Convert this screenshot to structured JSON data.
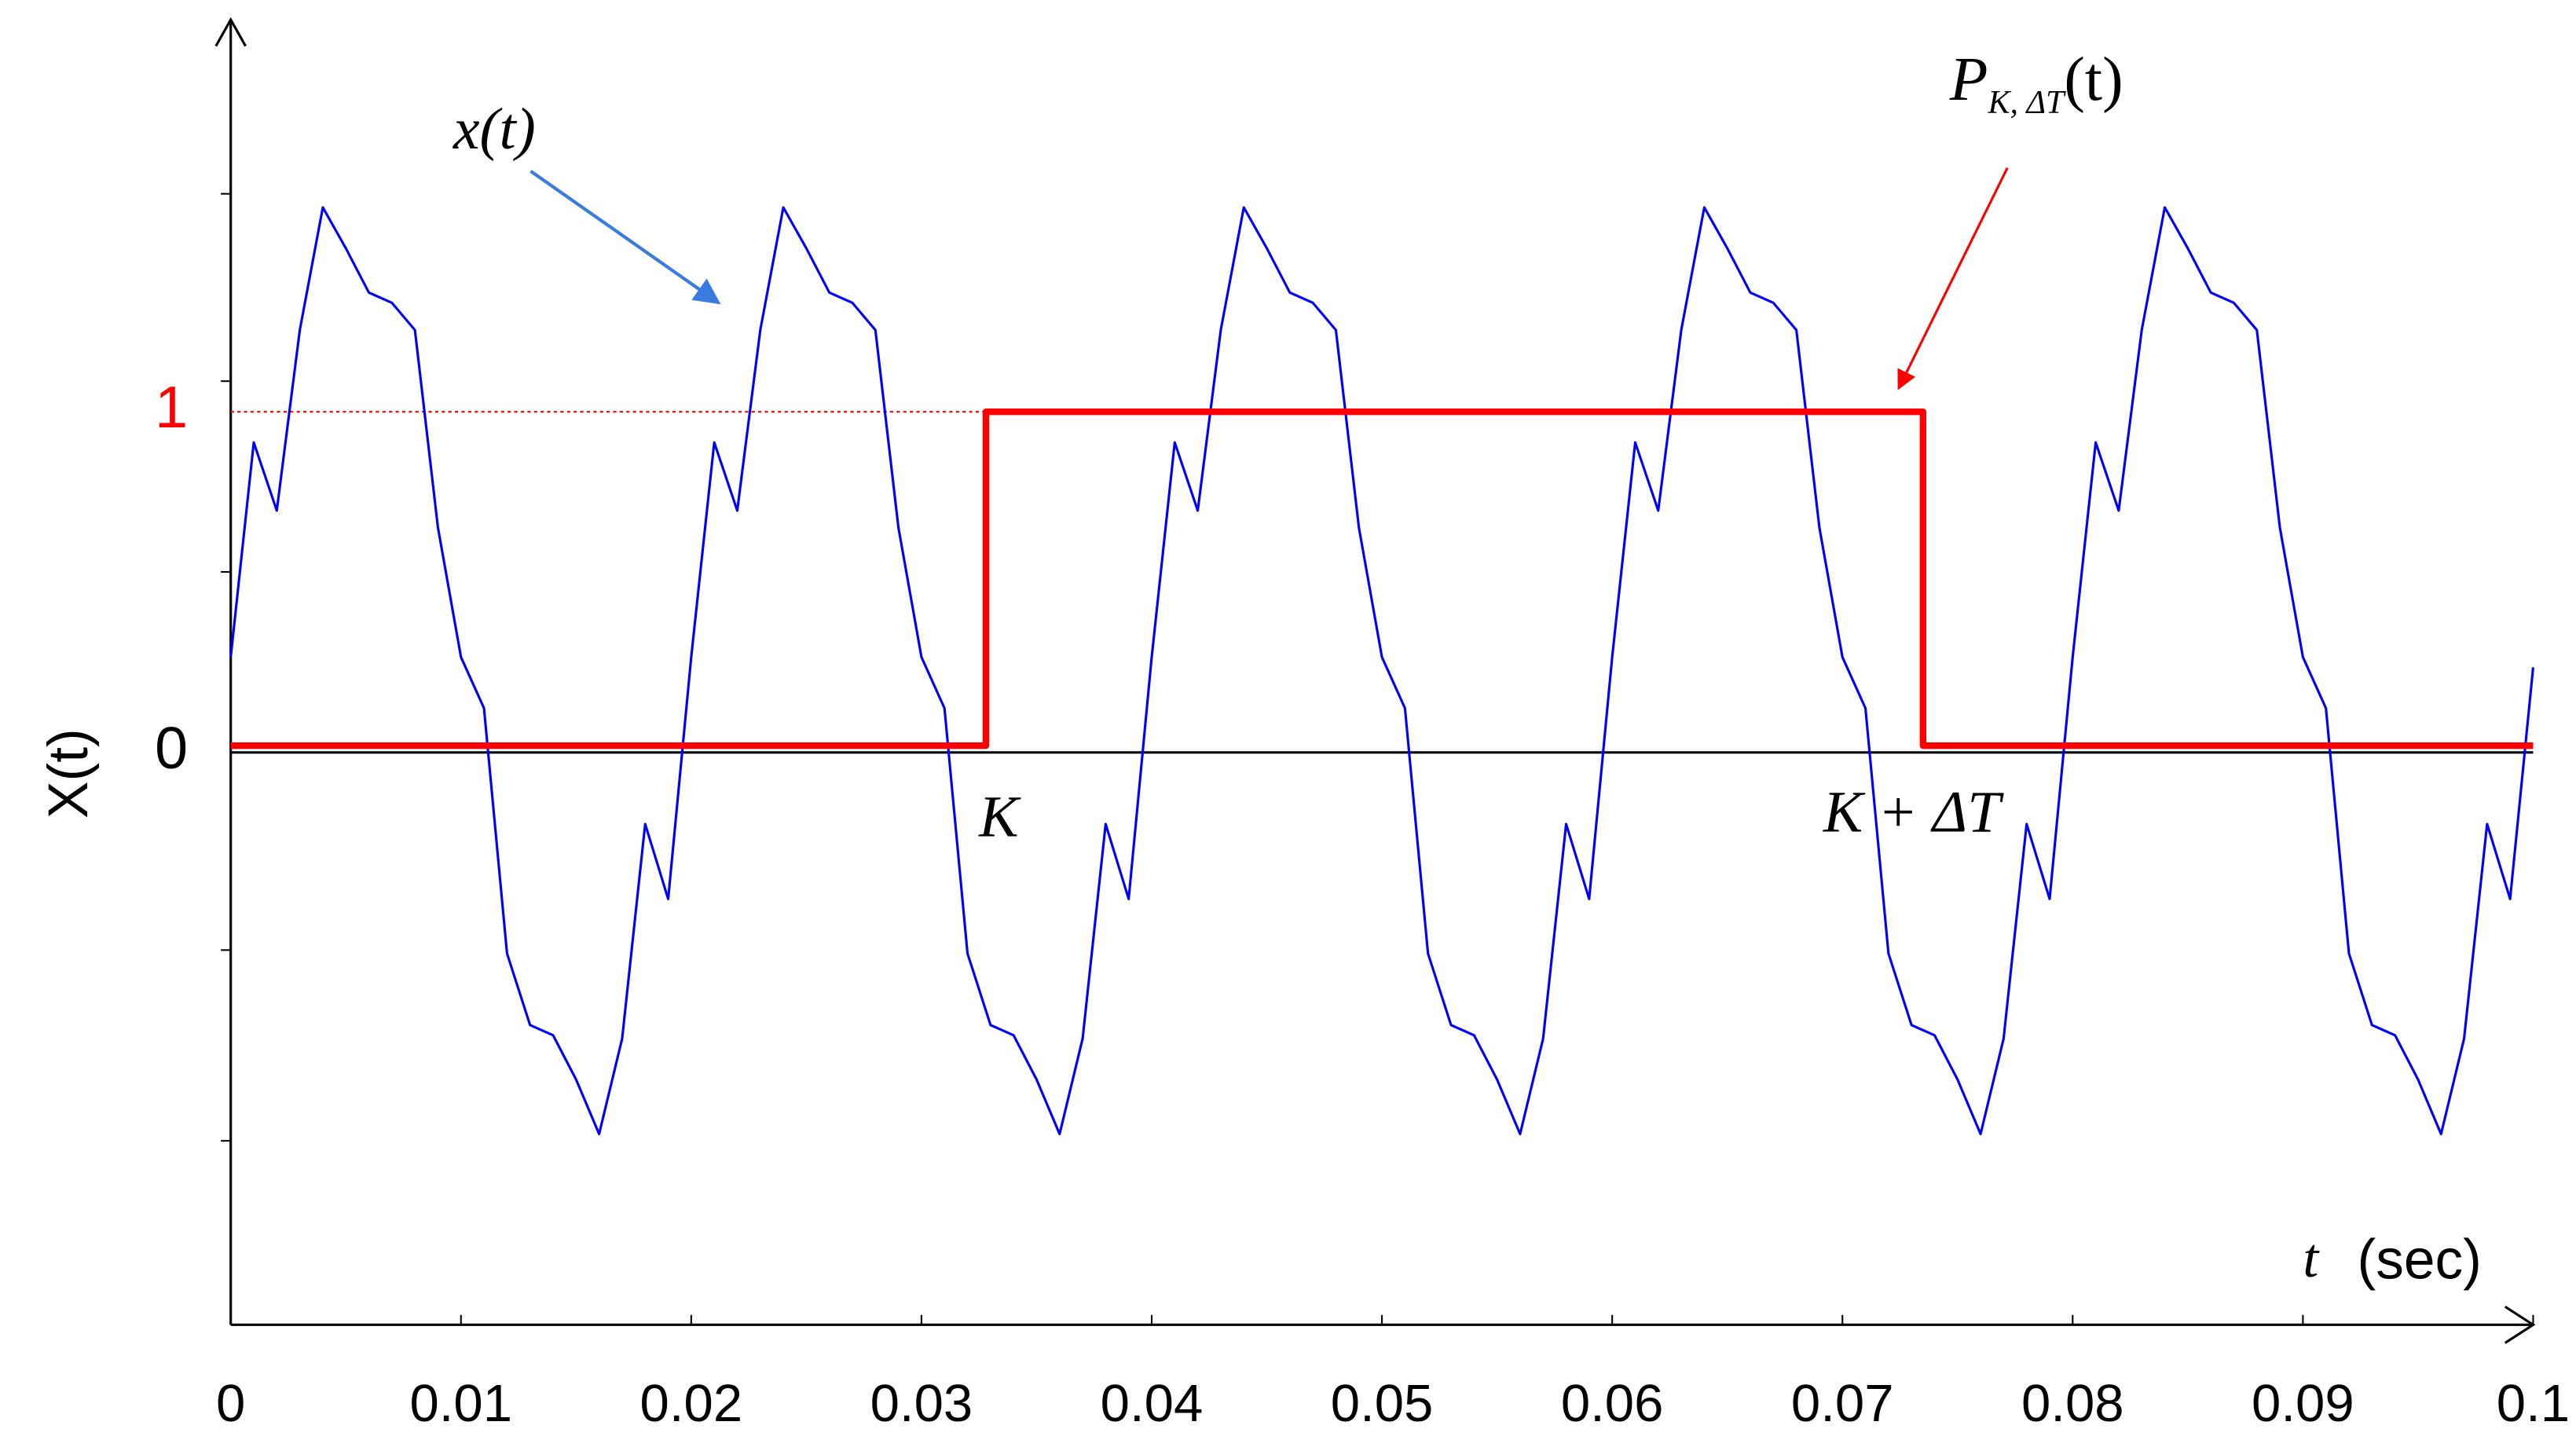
{
  "chart_data": {
    "type": "line",
    "y_label": "X(t)",
    "x_label": "t",
    "x_unit": "(sec)",
    "annotations": {
      "signal": "x(t)",
      "pulse_main": "P",
      "pulse_sub": "K, ΔT",
      "pulse_tail": "(t)",
      "start": "K",
      "end": "K + ΔT"
    },
    "xlim": [
      0,
      0.1
    ],
    "ylim": [
      -1.68,
      2.15
    ],
    "xticks": [
      0,
      0.01,
      0.02,
      0.03,
      0.04,
      0.05,
      0.06,
      0.07,
      0.08,
      0.09,
      0.1
    ],
    "yticks": [
      0,
      1
    ],
    "ytick_colors": [
      "#000000",
      "#ff0000"
    ],
    "yminorticks": [
      1.64,
      1.09,
      0.53,
      -0.58,
      -1.14
    ],
    "series": [
      {
        "name": "x(t)",
        "color": "#0000ff",
        "x": [
          0,
          0.001,
          0.002,
          0.003,
          0.004,
          0.005,
          0.006,
          0.007,
          0.008,
          0.009,
          0.01,
          0.011,
          0.012,
          0.013,
          0.014,
          0.015,
          0.016,
          0.017,
          0.018,
          0.019,
          0.02,
          0.021,
          0.022,
          0.023,
          0.024,
          0.025,
          0.026,
          0.027,
          0.028,
          0.029,
          0.03,
          0.031,
          0.032,
          0.033,
          0.034,
          0.035,
          0.036,
          0.037,
          0.038,
          0.039,
          0.04,
          0.041,
          0.042,
          0.043,
          0.044,
          0.045,
          0.046,
          0.047,
          0.048,
          0.049,
          0.05,
          0.051,
          0.052,
          0.053,
          0.054,
          0.055,
          0.056,
          0.057,
          0.058,
          0.059,
          0.06,
          0.061,
          0.062,
          0.063,
          0.064,
          0.065,
          0.066,
          0.067,
          0.068,
          0.069,
          0.07,
          0.071,
          0.072,
          0.073,
          0.074,
          0.075,
          0.076,
          0.077,
          0.078,
          0.079,
          0.08,
          0.081,
          0.082,
          0.083,
          0.084,
          0.085,
          0.086,
          0.087,
          0.088,
          0.089,
          0.09,
          0.091,
          0.092,
          0.093,
          0.094,
          0.095,
          0.096,
          0.097,
          0.098,
          0.099,
          0.1
        ],
        "values": [
          0.28,
          0.91,
          0.71,
          1.24,
          1.6,
          1.48,
          1.35,
          1.32,
          1.24,
          0.66,
          0.28,
          0.13,
          -0.59,
          -0.8,
          -0.83,
          -0.96,
          -1.12,
          -0.84,
          -0.21,
          -0.43,
          0.28,
          0.91,
          0.71,
          1.24,
          1.6,
          1.48,
          1.35,
          1.32,
          1.24,
          0.66,
          0.28,
          0.13,
          -0.59,
          -0.8,
          -0.83,
          -0.96,
          -1.12,
          -0.84,
          -0.21,
          -0.43,
          0.28,
          0.91,
          0.71,
          1.24,
          1.6,
          1.48,
          1.35,
          1.32,
          1.24,
          0.66,
          0.28,
          0.13,
          -0.59,
          -0.8,
          -0.83,
          -0.96,
          -1.12,
          -0.84,
          -0.21,
          -0.43,
          0.28,
          0.91,
          0.71,
          1.24,
          1.6,
          1.48,
          1.35,
          1.32,
          1.24,
          0.66,
          0.28,
          0.13,
          -0.59,
          -0.8,
          -0.83,
          -0.96,
          -1.12,
          -0.84,
          -0.21,
          -0.43,
          0.28,
          0.91,
          0.71,
          1.24,
          1.6,
          1.48,
          1.35,
          1.32,
          1.24,
          0.66,
          0.28,
          0.13,
          -0.59,
          -0.8,
          -0.83,
          -0.96,
          -1.12,
          -0.84,
          -0.21,
          -0.43,
          0.25
        ],
        "width": 1.5
      },
      {
        "name": "P(t)",
        "color": "#ff0000",
        "x": [
          0,
          0.0328,
          0.0328,
          0.0735,
          0.0735,
          0.1
        ],
        "values": [
          0.02,
          0.02,
          1,
          1,
          0.02,
          0.02
        ],
        "width": 4
      }
    ]
  }
}
